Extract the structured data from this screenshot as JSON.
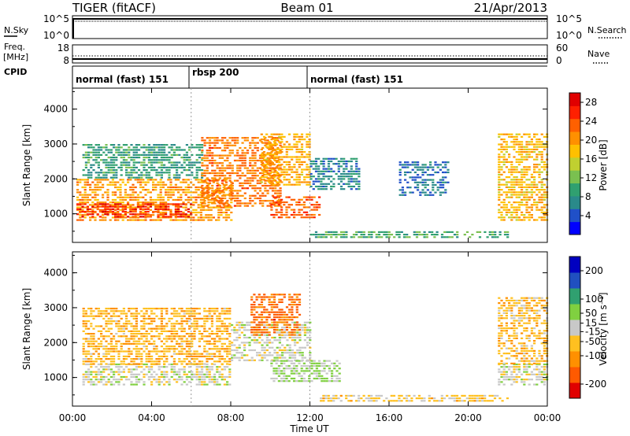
{
  "header": {
    "radar": "TIGER (fitACF)",
    "beam": "Beam 01",
    "date": "21/Apr/2013"
  },
  "top_panels": {
    "nsky_label": "N.Sky",
    "nsky_ticks": [
      "10^5",
      "10^0"
    ],
    "nsearch_label": "N.Search",
    "nsearch_ticks": [
      "10^5",
      "10^0"
    ],
    "freq_label_1": "Freq.",
    "freq_label_2": "[MHz]",
    "freq_ticks": [
      "18",
      "8"
    ],
    "nave_label": "Nave",
    "nave_ticks": [
      "60",
      "0"
    ],
    "cpid_label": "CPID"
  },
  "cpid_segments": [
    {
      "label": "normal (fast) 151",
      "start_hour": 0
    },
    {
      "label": "rbsp 200",
      "start_hour": 6
    },
    {
      "label": "normal (fast) 151",
      "start_hour": 12
    }
  ],
  "panels": {
    "power": {
      "colorbar_label": "Power [dB]",
      "ticks": [
        "28",
        "24",
        "20",
        "16",
        "12",
        "8",
        "4"
      ]
    },
    "velocity": {
      "colorbar_label": "Velocity [m s⁻¹]",
      "ticks": [
        "200",
        "100",
        "50",
        "15",
        "-15",
        "-50",
        "-100",
        "-200"
      ]
    }
  },
  "axes": {
    "ylabel": "Slant Range [km]",
    "y_ticks": [
      "1000",
      "2000",
      "3000",
      "4000"
    ],
    "xlabel": "Time UT",
    "x_ticks": [
      "00:00",
      "04:00",
      "08:00",
      "12:00",
      "16:00",
      "20:00",
      "00:00"
    ]
  },
  "chart_data": [
    {
      "type": "heatmap",
      "title": "Power",
      "xlabel": "Time UT",
      "ylabel": "Slant Range [km]",
      "xlim_hours": [
        0,
        24
      ],
      "ylim_km": [
        180,
        4600
      ],
      "colorbar": {
        "label": "Power [dB]",
        "range": [
          0,
          30
        ],
        "ticks": [
          4,
          8,
          12,
          16,
          20,
          24,
          28
        ]
      },
      "colormap": [
        "#0000ff",
        "#2050c8",
        "#2a8a8a",
        "#30a070",
        "#7ac050",
        "#c0d030",
        "#ffc000",
        "#ff9000",
        "#ff6000",
        "#ff2000",
        "#e00000"
      ],
      "regions": [
        {
          "t": [
            0.2,
            8.0
          ],
          "r": [
            800,
            2000
          ],
          "power": 20
        },
        {
          "t": [
            0.2,
            6.0
          ],
          "r": [
            900,
            1300
          ],
          "power": 26
        },
        {
          "t": [
            0.5,
            6.5
          ],
          "r": [
            2000,
            3000
          ],
          "power": 9
        },
        {
          "t": [
            6.5,
            10.5
          ],
          "r": [
            1200,
            3200
          ],
          "power": 22
        },
        {
          "t": [
            9.5,
            12.0
          ],
          "r": [
            1800,
            3300
          ],
          "power": 19
        },
        {
          "t": [
            10.0,
            12.5
          ],
          "r": [
            900,
            1500
          ],
          "power": 24
        },
        {
          "t": [
            12.0,
            22.0
          ],
          "r": [
            300,
            500
          ],
          "power": 10
        },
        {
          "t": [
            12.0,
            14.5
          ],
          "r": [
            1700,
            2600
          ],
          "power": 7
        },
        {
          "t": [
            16.5,
            19.0
          ],
          "r": [
            1500,
            2500
          ],
          "power": 6
        },
        {
          "t": [
            21.5,
            24.0
          ],
          "r": [
            800,
            3300
          ],
          "power": 18
        }
      ]
    },
    {
      "type": "heatmap",
      "title": "Velocity",
      "xlabel": "Time UT",
      "ylabel": "Slant Range [km]",
      "xlim_hours": [
        0,
        24
      ],
      "ylim_km": [
        180,
        4600
      ],
      "colorbar": {
        "label": "Velocity [m s⁻¹]",
        "range": [
          -250,
          250
        ],
        "ticks": [
          200,
          100,
          50,
          15,
          -15,
          -50,
          -100,
          -200
        ]
      },
      "colormap": [
        "#e00000",
        "#ff5a00",
        "#ff9000",
        "#ffc020",
        "#c8c8c8",
        "#80d040",
        "#30a070",
        "#2050c0",
        "#0000c0"
      ],
      "regions": [
        {
          "t": [
            0.5,
            8.0
          ],
          "r": [
            800,
            1400
          ],
          "velocity": 0
        },
        {
          "t": [
            0.5,
            8.0
          ],
          "r": [
            1400,
            3000
          ],
          "velocity": -70
        },
        {
          "t": [
            8.0,
            12.0
          ],
          "r": [
            1500,
            2600
          ],
          "velocity": 0
        },
        {
          "t": [
            9.0,
            11.5
          ],
          "r": [
            2200,
            3400
          ],
          "velocity": -150
        },
        {
          "t": [
            10.0,
            13.5
          ],
          "r": [
            900,
            1500
          ],
          "velocity": 30
        },
        {
          "t": [
            12.5,
            22.0
          ],
          "r": [
            300,
            500
          ],
          "velocity": -40
        },
        {
          "t": [
            21.5,
            24.0
          ],
          "r": [
            800,
            1400
          ],
          "velocity": 0
        },
        {
          "t": [
            21.5,
            24.0
          ],
          "r": [
            1400,
            3300
          ],
          "velocity": -60
        }
      ]
    }
  ]
}
